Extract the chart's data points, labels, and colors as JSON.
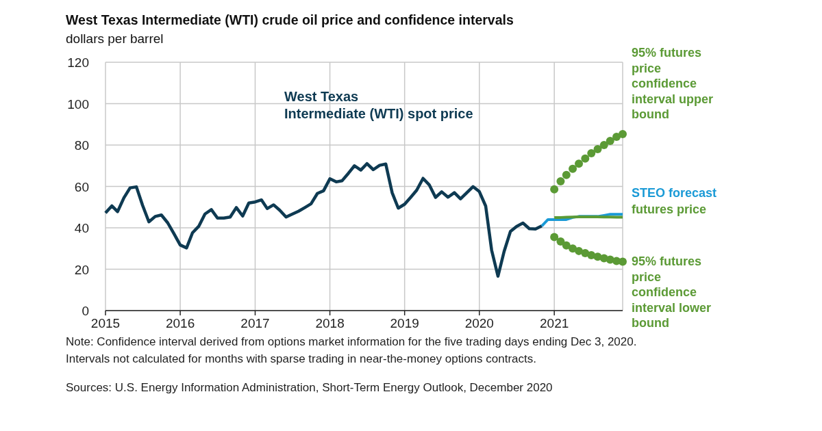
{
  "chart_data": {
    "type": "line",
    "title": "West Texas Intermediate (WTI) crude oil price and confidence intervals",
    "subtitle": "dollars per barrel",
    "xlim": [
      "2015-01",
      "2021-12"
    ],
    "xticks": [
      "2015",
      "2016",
      "2017",
      "2018",
      "2019",
      "2020",
      "2021"
    ],
    "ylim": [
      0,
      120
    ],
    "yticks": [
      0,
      20,
      40,
      60,
      80,
      100,
      120
    ],
    "grid": true,
    "series": [
      {
        "name": "West Texas Intermediate (WTI) spot price",
        "color": "#0e3a52",
        "x": [
          "2015-01",
          "2015-02",
          "2015-03",
          "2015-04",
          "2015-05",
          "2015-06",
          "2015-07",
          "2015-08",
          "2015-09",
          "2015-10",
          "2015-11",
          "2015-12",
          "2016-01",
          "2016-02",
          "2016-03",
          "2016-04",
          "2016-05",
          "2016-06",
          "2016-07",
          "2016-08",
          "2016-09",
          "2016-10",
          "2016-11",
          "2016-12",
          "2017-01",
          "2017-02",
          "2017-03",
          "2017-04",
          "2017-05",
          "2017-06",
          "2017-07",
          "2017-08",
          "2017-09",
          "2017-10",
          "2017-11",
          "2017-12",
          "2018-01",
          "2018-02",
          "2018-03",
          "2018-04",
          "2018-05",
          "2018-06",
          "2018-07",
          "2018-08",
          "2018-09",
          "2018-10",
          "2018-11",
          "2018-12",
          "2019-01",
          "2019-02",
          "2019-03",
          "2019-04",
          "2019-05",
          "2019-06",
          "2019-07",
          "2019-08",
          "2019-09",
          "2019-10",
          "2019-11",
          "2019-12",
          "2020-01",
          "2020-02",
          "2020-03",
          "2020-04",
          "2020-05",
          "2020-06",
          "2020-07",
          "2020-08",
          "2020-09",
          "2020-10",
          "2020-11"
        ],
        "values": [
          47.2,
          50.6,
          47.8,
          54.5,
          59.3,
          59.8,
          50.9,
          42.9,
          45.5,
          46.2,
          42.4,
          37.2,
          31.7,
          30.3,
          37.6,
          40.8,
          46.7,
          48.8,
          44.7,
          44.7,
          45.2,
          49.8,
          45.7,
          52.0,
          52.5,
          53.5,
          49.3,
          51.1,
          48.5,
          45.2,
          46.6,
          48.0,
          49.8,
          51.6,
          56.6,
          57.9,
          63.7,
          62.2,
          62.7,
          66.3,
          70.0,
          67.9,
          71.0,
          68.1,
          70.2,
          70.8,
          57.0,
          49.5,
          51.4,
          54.9,
          58.2,
          63.9,
          60.8,
          54.7,
          57.4,
          54.8,
          57.0,
          54.0,
          57.0,
          59.9,
          57.5,
          50.5,
          29.2,
          16.6,
          28.6,
          38.3,
          40.7,
          42.3,
          39.6,
          39.4,
          40.9
        ]
      },
      {
        "name": "STEO forecast",
        "color": "#1a9ad6",
        "x": [
          "2020-11",
          "2020-12",
          "2021-01",
          "2021-02",
          "2021-03",
          "2021-04",
          "2021-05",
          "2021-06",
          "2021-07",
          "2021-08",
          "2021-09",
          "2021-10",
          "2021-11",
          "2021-12"
        ],
        "values": [
          40.9,
          44.0,
          44.0,
          44.0,
          44.0,
          45.0,
          45.5,
          45.5,
          45.5,
          45.5,
          46.0,
          46.5,
          46.5,
          46.5
        ]
      },
      {
        "name": "futures price",
        "color": "#5b9a35",
        "x": [
          "2021-01",
          "2021-02",
          "2021-03",
          "2021-04",
          "2021-05",
          "2021-06",
          "2021-07",
          "2021-08",
          "2021-09",
          "2021-10",
          "2021-11",
          "2021-12"
        ],
        "values": [
          45.0,
          45.0,
          45.1,
          45.2,
          45.3,
          45.3,
          45.3,
          45.3,
          45.2,
          45.2,
          45.1,
          45.1
        ]
      },
      {
        "name": "95% futures price confidence interval upper bound",
        "color": "#5b9a35",
        "type": "scatter",
        "marker": "circle",
        "x": [
          "2021-01",
          "2021-02",
          "2021-03",
          "2021-04",
          "2021-05",
          "2021-06",
          "2021-07",
          "2021-08",
          "2021-09",
          "2021-10",
          "2021-11",
          "2021-12"
        ],
        "values": [
          58.6,
          62.5,
          65.5,
          68.5,
          71.0,
          73.5,
          76.0,
          78.0,
          80.0,
          82.0,
          84.0,
          85.3
        ]
      },
      {
        "name": "95% futures price confidence interval lower bound",
        "color": "#5b9a35",
        "type": "scatter",
        "marker": "circle",
        "x": [
          "2021-01",
          "2021-02",
          "2021-03",
          "2021-04",
          "2021-05",
          "2021-06",
          "2021-07",
          "2021-08",
          "2021-09",
          "2021-10",
          "2021-11",
          "2021-12"
        ],
        "values": [
          35.5,
          33.4,
          31.5,
          30.0,
          28.8,
          27.8,
          26.8,
          26.0,
          25.3,
          24.6,
          24.0,
          23.6
        ]
      }
    ],
    "annotations": [
      "Note: Confidence interval derived from options market information for the five trading days ending Dec 3, 2020. Intervals not calculated for months with sparse trading in near-the-money options contracts.",
      "Sources: U.S. Energy Information Administration, Short-Term Energy Outlook, December 2020"
    ]
  }
}
